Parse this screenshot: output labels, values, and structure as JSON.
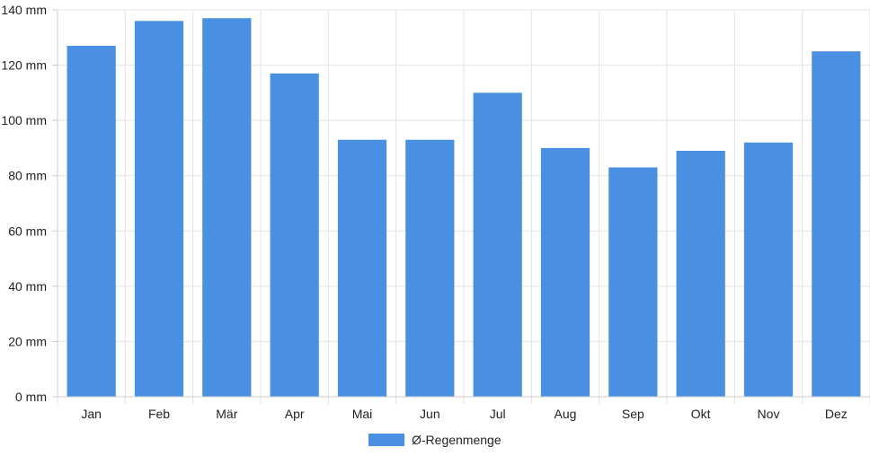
{
  "chart_data": {
    "type": "bar",
    "categories": [
      "Jan",
      "Feb",
      "Mär",
      "Apr",
      "Mai",
      "Jun",
      "Jul",
      "Aug",
      "Sep",
      "Okt",
      "Nov",
      "Dez"
    ],
    "series": [
      {
        "name": "Ø-Regenmenge",
        "values": [
          127,
          136,
          137,
          117,
          93,
          93,
          110,
          90,
          83,
          89,
          92,
          125
        ],
        "color": "#4a90e2"
      }
    ],
    "y_unit": "mm",
    "ylim": [
      0,
      140
    ],
    "yticks": [
      0,
      20,
      40,
      60,
      80,
      100,
      120,
      140
    ],
    "y_tick_labels": [
      "0 mm",
      "20 mm",
      "40 mm",
      "60 mm",
      "80 mm",
      "100 mm",
      "120 mm",
      "140 mm"
    ],
    "grid": true,
    "legend_position": "bottom-center",
    "title": "",
    "xlabel": "",
    "ylabel": ""
  }
}
